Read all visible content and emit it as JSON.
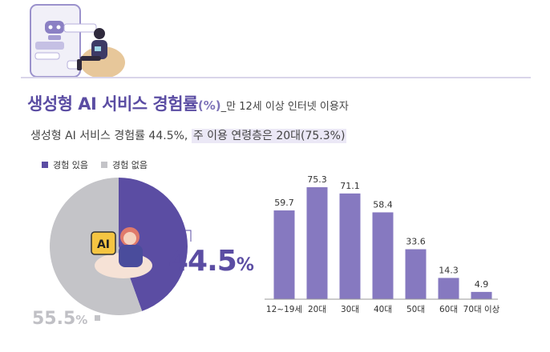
{
  "title": {
    "main": "생성형 AI 서비스 경험률",
    "unit": "(%)",
    "sub": "_만 12세 이상 인터넷 이용자"
  },
  "subtitle": {
    "prefix": "생성형 AI 서비스 경험률 44.5%, ",
    "highlight": "주 이용 연령층은 20대(75.3%)"
  },
  "colors": {
    "purple": "#5b4da3",
    "bar": "#8679c0",
    "gray": "#c4c4c8"
  },
  "illustration": {
    "ai_badge": "AI"
  },
  "chart_data": [
    {
      "type": "pie",
      "legend_position": "top-left",
      "slices": [
        {
          "label": "경험 있음",
          "value": 44.5,
          "value_label": "44.5",
          "unit": "%",
          "color": "#5b4da3"
        },
        {
          "label": "경험 없음",
          "value": 55.5,
          "value_label": "55.5",
          "unit": "%",
          "color": "#c4c4c8"
        }
      ]
    },
    {
      "type": "bar",
      "categories": [
        "12~19세",
        "20대",
        "30대",
        "40대",
        "50대",
        "60대",
        "70대 이상"
      ],
      "values": [
        59.7,
        75.3,
        71.1,
        58.4,
        33.6,
        14.3,
        4.9
      ],
      "value_labels": [
        "59.7",
        "75.3",
        "71.1",
        "58.4",
        "33.6",
        "14.3",
        "4.9"
      ],
      "ylim": [
        0,
        85
      ]
    }
  ]
}
